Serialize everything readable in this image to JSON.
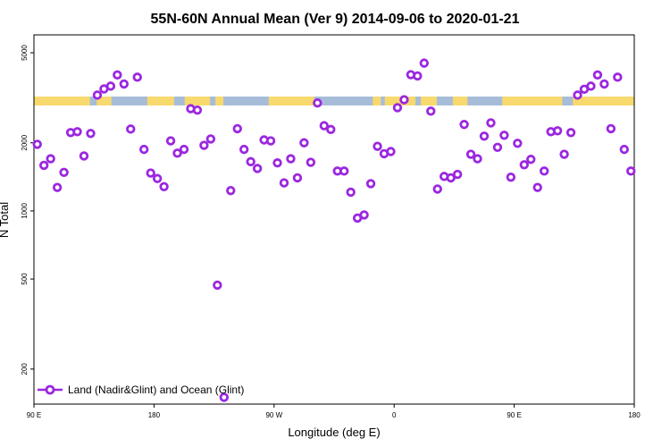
{
  "chart_data": {
    "type": "scatter",
    "title": "55N-60N Annual Mean (Ver 9)   2014-09-06 to 2020-01-21",
    "xlabel": "Longitude (deg E)",
    "ylabel": "N Total",
    "y_scale": "log",
    "ylim": [
      140,
      6000
    ],
    "xlim": [
      90,
      540
    ],
    "x_ticks": [
      {
        "value": 90,
        "label": "90 E"
      },
      {
        "value": 180,
        "label": "180"
      },
      {
        "value": 270,
        "label": "90 W"
      },
      {
        "value": 360,
        "label": "0"
      },
      {
        "value": 450,
        "label": "90 E"
      },
      {
        "value": 540,
        "label": "180"
      }
    ],
    "y_ticks": [
      {
        "value": 200,
        "label": "200"
      },
      {
        "value": 500,
        "label": "500"
      },
      {
        "value": 1000,
        "label": "1000"
      },
      {
        "value": 2000,
        "label": "2000"
      },
      {
        "value": 5000,
        "label": "5000"
      }
    ],
    "legend": {
      "position": "bottom-left",
      "label": "Land (Nadir&Glint) and Ocean (Glint)"
    },
    "marker_color": "#9b27e0",
    "colors": {
      "land": "#f8d96e",
      "ocean": "#a7bcd9"
    },
    "land_segments": [
      [
        90,
        132
      ],
      [
        137,
        148
      ],
      [
        175,
        195
      ],
      [
        203,
        222
      ],
      [
        226,
        232
      ],
      [
        266,
        300
      ],
      [
        344,
        350
      ],
      [
        353,
        376
      ],
      [
        380,
        392
      ],
      [
        404,
        415
      ],
      [
        441,
        486
      ],
      [
        494,
        540
      ]
    ],
    "series": [
      {
        "x": [
          92.5,
          97.5,
          102.5,
          107.5,
          112.5,
          117.5,
          122.5,
          127.5,
          132.5,
          137.5,
          142.5,
          147.5,
          152.5,
          157.5,
          162.5,
          167.5,
          172.5,
          177.5,
          182.5,
          187.5,
          192.5,
          197.5,
          202.5,
          207.5,
          212.5,
          217.5,
          222.5,
          227.5,
          232.5,
          237.5,
          242.5,
          247.5,
          252.5,
          257.5,
          262.5,
          267.5,
          272.5,
          277.5,
          282.5,
          287.5,
          292.5,
          297.5,
          302.5,
          307.5,
          312.5,
          317.5,
          322.5,
          327.5,
          332.5,
          337.5,
          342.5,
          347.5,
          352.5,
          357.5,
          362.5,
          367.5,
          372.5,
          377.5,
          382.5,
          387.5,
          392.5,
          397.5,
          402.5,
          407.5,
          412.5,
          417.5,
          422.5,
          427.5,
          432.5,
          437.5,
          442.5,
          447.5,
          452.5,
          457.5,
          462.5,
          467.5,
          472.5,
          477.5,
          482.5,
          487.5,
          492.5,
          497.5,
          502.5,
          507.5,
          512.5,
          517.5,
          522.5,
          527.5,
          532.5,
          537.5
        ],
        "y": [
          1970,
          1590,
          1700,
          1270,
          1480,
          2220,
          2240,
          1750,
          2200,
          3250,
          3460,
          3560,
          3990,
          3640,
          2300,
          3900,
          1870,
          1470,
          1390,
          1280,
          2040,
          1800,
          1870,
          2830,
          2790,
          1950,
          2080,
          470,
          150,
          1230,
          2310,
          1870,
          1650,
          1540,
          2060,
          2040,
          1630,
          1330,
          1700,
          1400,
          2000,
          1640,
          3000,
          2380,
          2290,
          1500,
          1500,
          1210,
          930,
          960,
          1320,
          1930,
          1790,
          1830,
          2860,
          3100,
          4000,
          3950,
          4500,
          2760,
          1250,
          1420,
          1400,
          1450,
          2410,
          1780,
          1700,
          2140,
          2450,
          1910,
          2160,
          1410,
          1990,
          1600,
          1690,
          1270,
          1500,
          2240,
          2260,
          1780,
          2220,
          3250,
          3450,
          3560,
          3990,
          3640,
          2310,
          3900,
          1870,
          1500
        ]
      }
    ]
  }
}
